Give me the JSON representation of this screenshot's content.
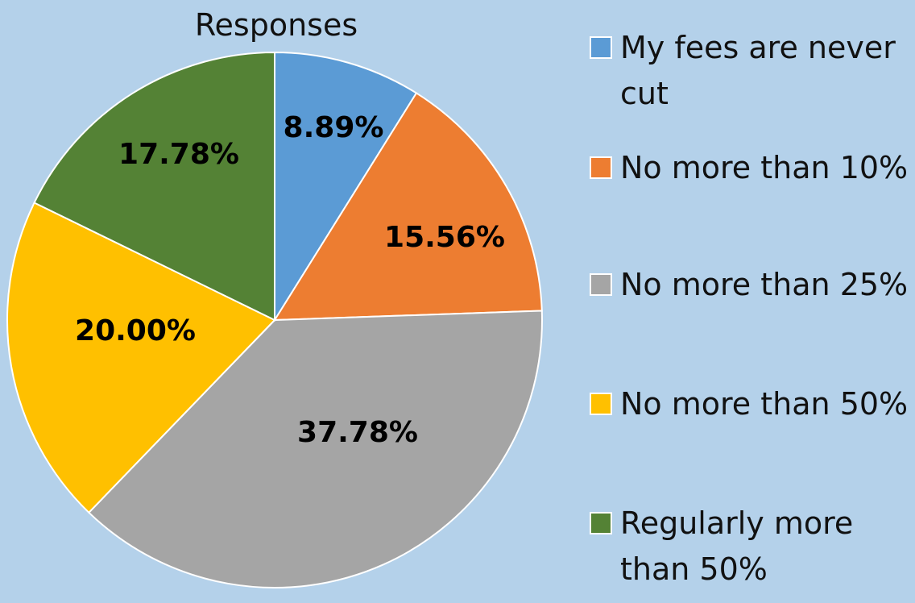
{
  "chart_data": {
    "type": "pie",
    "title": "Responses",
    "categories": [
      "My fees are never cut",
      "No more than 10%",
      "No more than 25%",
      "No more than 50%",
      "Regularly more than 50%"
    ],
    "values": [
      8.89,
      15.56,
      37.78,
      20.0,
      17.78
    ],
    "data_labels": [
      "8.89%",
      "15.56%",
      "37.78%",
      "20.00%",
      "17.78%"
    ],
    "colors": [
      "#5B9BD5",
      "#ED7D31",
      "#A5A5A5",
      "#FFC000",
      "#548235"
    ],
    "background_color": "#B4D1EA",
    "legend_placement": "right",
    "start_angle": "12 o'clock",
    "direction": "clockwise"
  }
}
